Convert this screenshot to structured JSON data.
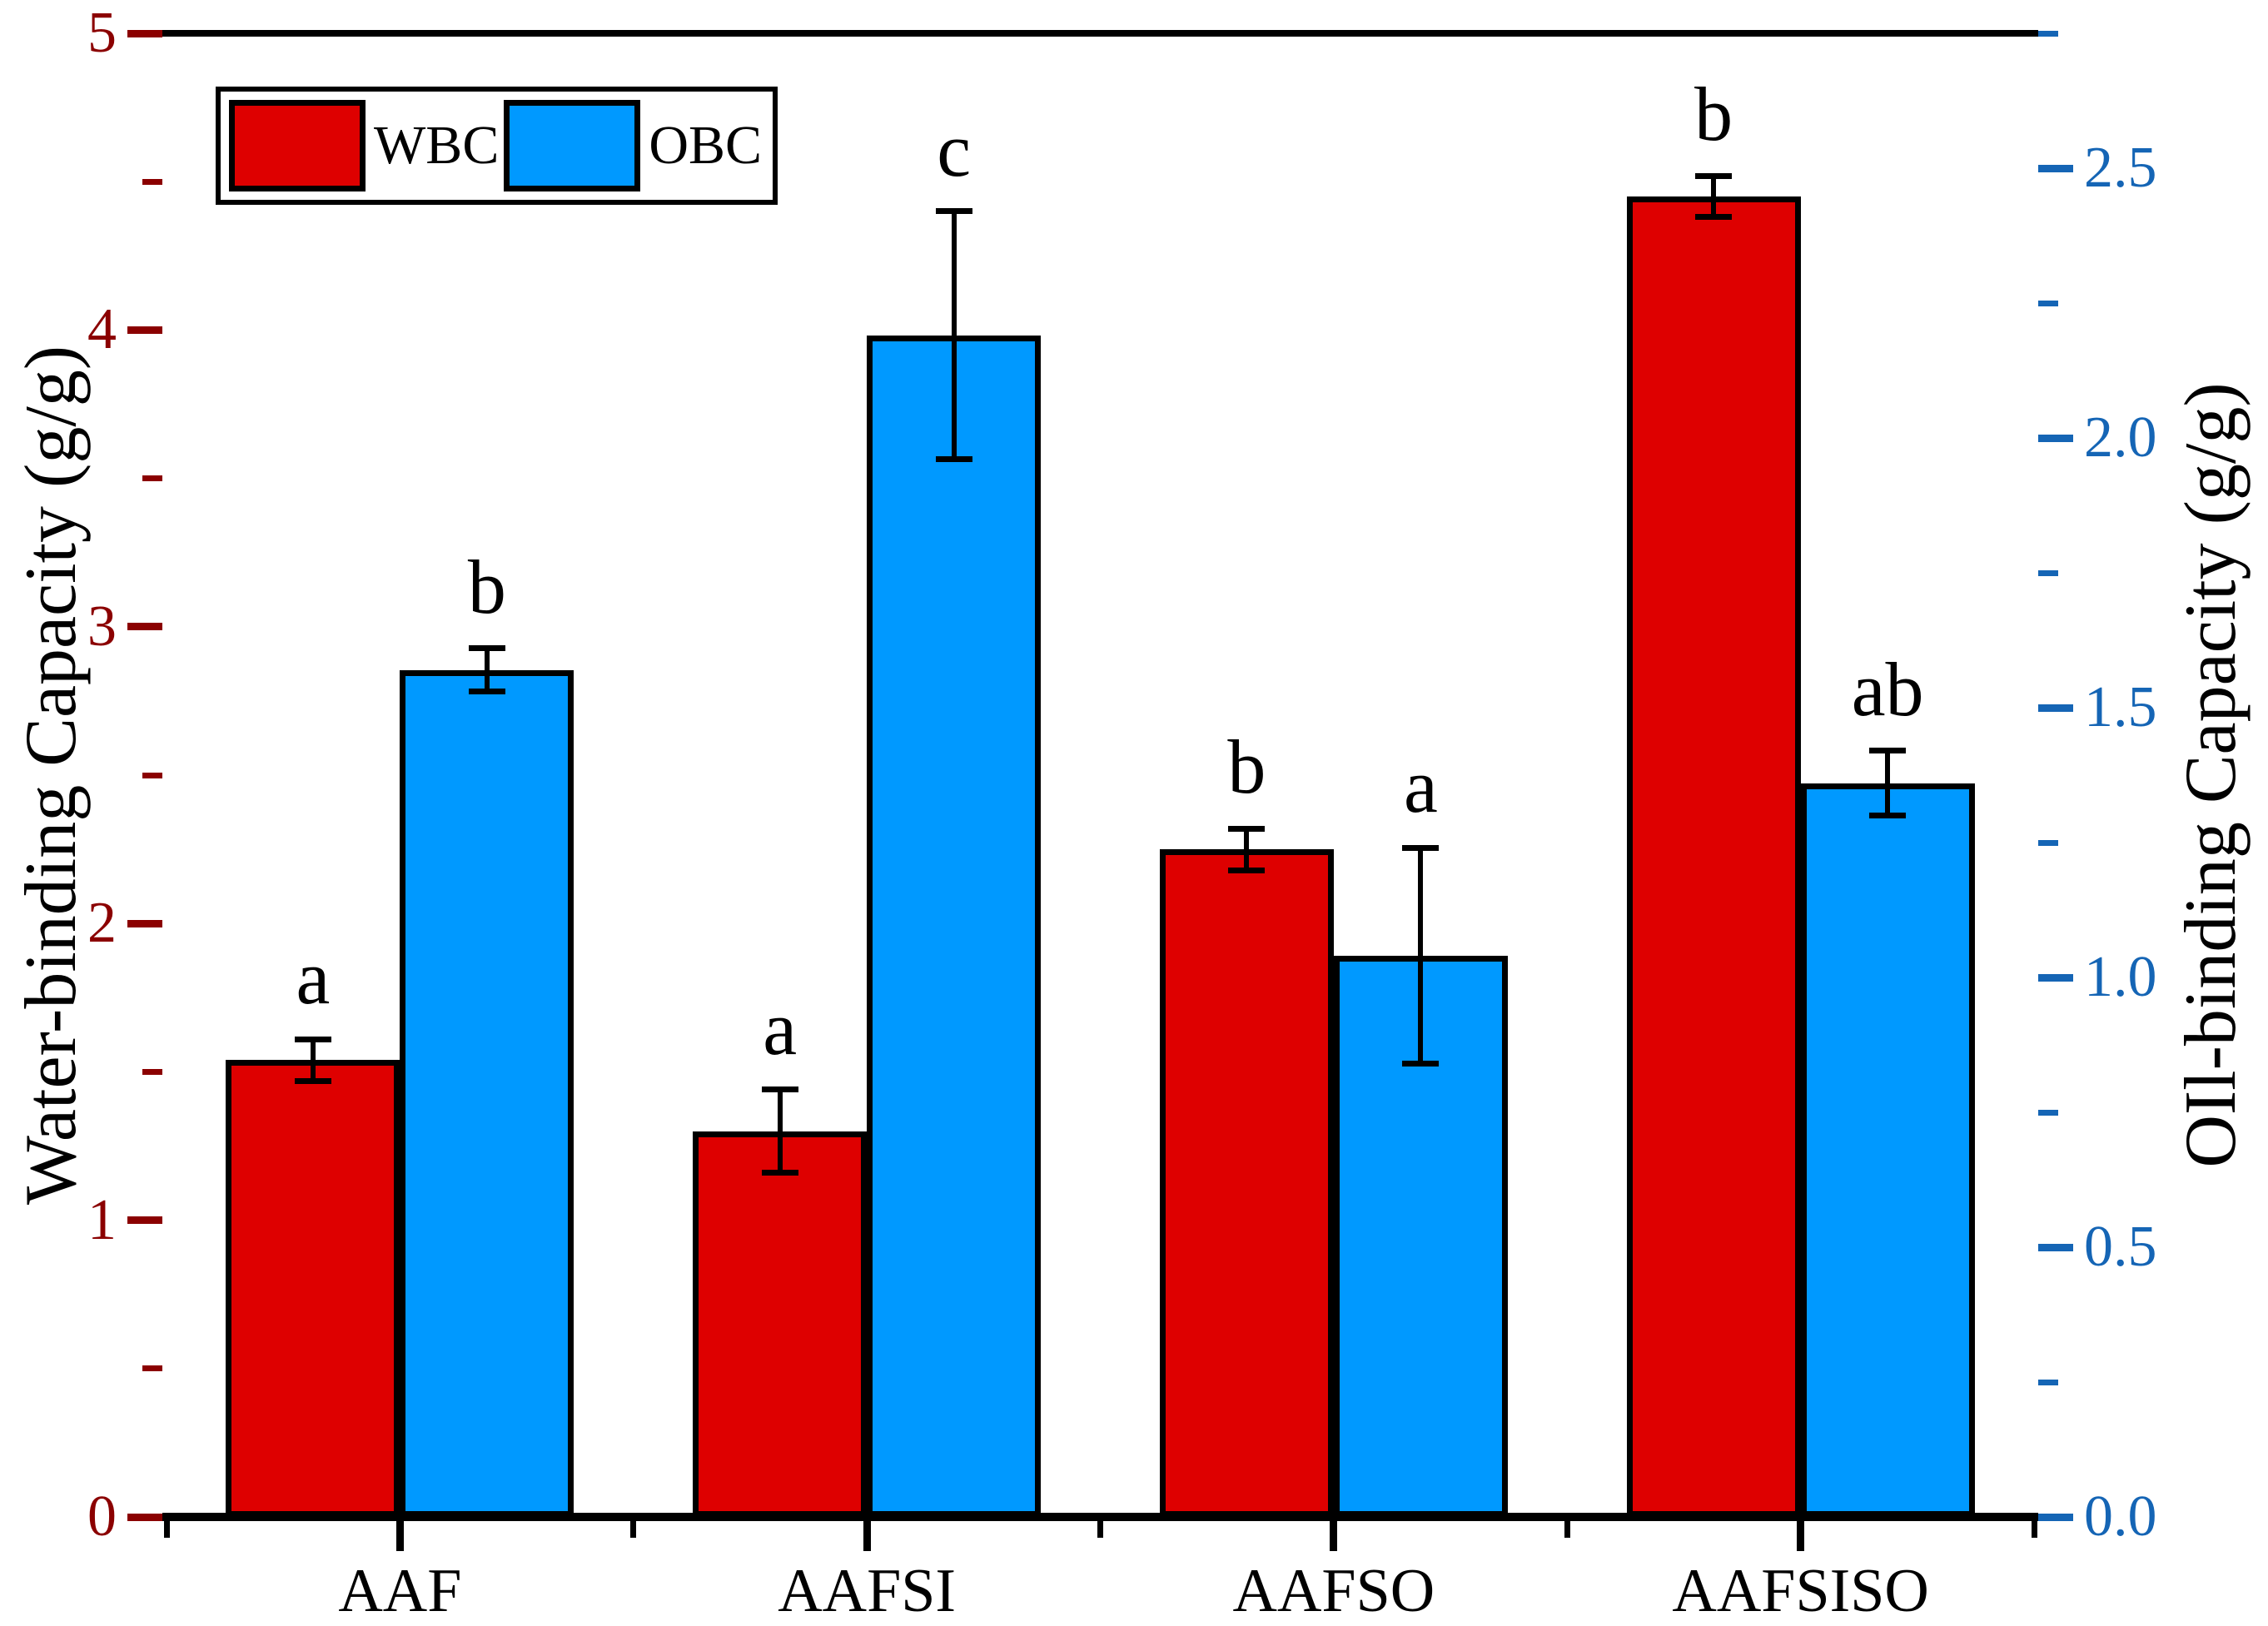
{
  "chart_data": {
    "type": "bar",
    "categories": [
      "AAF",
      "AAFSI",
      "AAFSO",
      "AAFSISO"
    ],
    "series": [
      {
        "name": "WBC",
        "axis": "left",
        "color": "#DE0000",
        "values": [
          1.54,
          1.3,
          2.25,
          4.45
        ],
        "errors": [
          0.07,
          0.14,
          0.07,
          0.07
        ],
        "sig_letters": [
          "a",
          "a",
          "b",
          "b"
        ]
      },
      {
        "name": "OBC",
        "axis": "right",
        "color": "#0099FF",
        "values": [
          1.57,
          2.19,
          1.04,
          1.36
        ],
        "errors": [
          0.04,
          0.23,
          0.2,
          0.06
        ],
        "sig_letters": [
          "b",
          "c",
          "a",
          "ab"
        ]
      }
    ],
    "left_axis": {
      "label": "Water-binding Capacity (g/g)",
      "min": 0,
      "max": 5,
      "major_ticks": [
        0,
        1,
        2,
        3,
        4,
        5
      ],
      "tick_labels": [
        "0",
        "1",
        "2",
        "3",
        "4",
        "5"
      ],
      "minor_ticks": [
        0.5,
        1.5,
        2.5,
        3.5,
        4.5
      ],
      "color": "#8B0000"
    },
    "right_axis": {
      "label": "OIl-binding Capacity (g/g)",
      "min": 0,
      "max": 2.75,
      "major_ticks": [
        0,
        0.5,
        1.0,
        1.5,
        2.0,
        2.5
      ],
      "tick_labels": [
        "0.0",
        "0.5",
        "1.0",
        "1.5",
        "2.0",
        "2.5"
      ],
      "minor_ticks": [
        0.25,
        0.75,
        1.25,
        1.75,
        2.25,
        2.75
      ],
      "color": "#1565B5"
    },
    "x_axis": {
      "color": "#000000"
    },
    "legend": {
      "position": "top-left",
      "entries": [
        {
          "label": "WBC",
          "color": "#DE0000"
        },
        {
          "label": "OBC",
          "color": "#0099FF"
        }
      ]
    },
    "grid": false,
    "bar_border_color": "#000000",
    "error_bar_color": "#000000",
    "background_color": "#FFFFFF"
  }
}
